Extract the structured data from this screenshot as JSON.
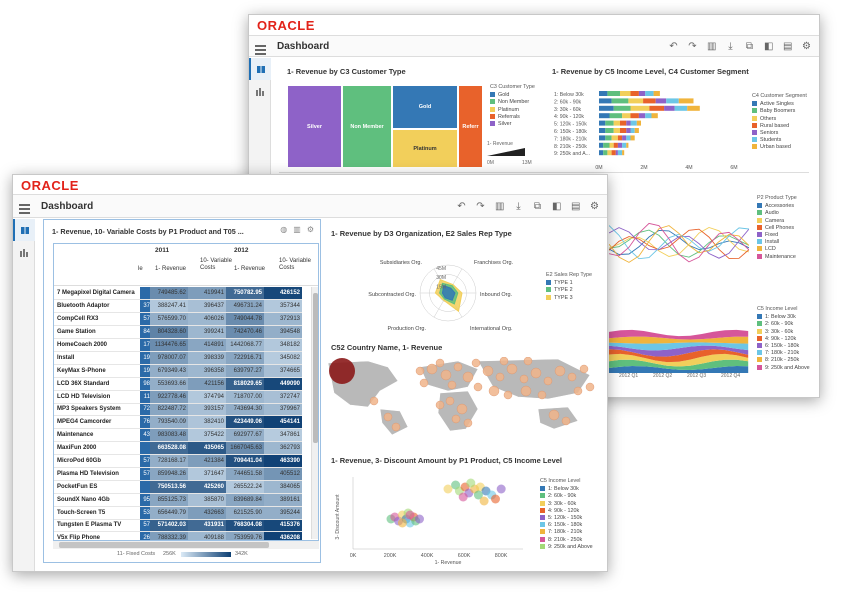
{
  "back": {
    "logo": "ORACLE",
    "title": "Dashboard",
    "p1": {
      "title": "1- Revenue by C3 Customer Type",
      "legend_title": "C3 Customer Type",
      "legend": [
        {
          "label": "Gold",
          "color": "#3478b5"
        },
        {
          "label": "Non Member",
          "color": "#5fbf7e"
        },
        {
          "label": "Platinum",
          "color": "#f2cf5b"
        },
        {
          "label": "Referrals",
          "color": "#e8622b"
        },
        {
          "label": "Silver",
          "color": "#8e62c8"
        }
      ],
      "tiles": [
        {
          "label": "Silver",
          "color": "#8e62c8"
        },
        {
          "label": "Non Member",
          "color": "#5fbf7e"
        },
        {
          "label": "Gold",
          "color": "#3478b5"
        },
        {
          "label": "Platinum",
          "color": "#f2cf5b"
        },
        {
          "label": "Referr",
          "color": "#e8622b"
        }
      ],
      "size_label": "1- Revenue",
      "size_min": "0M",
      "size_max": "13M"
    },
    "p2": {
      "title": "1- Revenue by C5 Income Level, C4 Customer Segment",
      "ylabel": "C5 Income Level",
      "categories": [
        "1: Below 30k",
        "2: 60k - 90k",
        "3: 30k - 60k",
        "4: 90k - 120k",
        "5: 120k - 150k",
        "6: 150k - 180k",
        "7: 180k - 210k",
        "8: 210k - 250k",
        "9: 250k and A..."
      ],
      "xticks": [
        "0M",
        "2M",
        "4M",
        "6M"
      ],
      "xlabel": "1- Revenue",
      "legend_title": "C4 Customer Segment",
      "legend": [
        {
          "label": "Active Singles",
          "color": "#3478b5"
        },
        {
          "label": "Baby Boomers",
          "color": "#5fbf7e"
        },
        {
          "label": "Others",
          "color": "#f2cf5b"
        },
        {
          "label": "Rural based",
          "color": "#e8622b"
        },
        {
          "label": "Seniors",
          "color": "#8e62c8"
        },
        {
          "label": "Students",
          "color": "#6cc6e6"
        },
        {
          "label": "Urban based",
          "color": "#f0b43c"
        }
      ]
    },
    "p3": {
      "legend_title": "P2 Product Type",
      "legend": [
        {
          "label": "Accessories",
          "color": "#3478b5"
        },
        {
          "label": "Audio",
          "color": "#5fbf7e"
        },
        {
          "label": "Camera",
          "color": "#f2cf5b"
        },
        {
          "label": "Cell Phones",
          "color": "#e8622b"
        },
        {
          "label": "Fixed",
          "color": "#8e62c8"
        },
        {
          "label": "Install",
          "color": "#6cc6e6"
        },
        {
          "label": "LCD",
          "color": "#f0b43c"
        },
        {
          "label": "Maintenance",
          "color": "#d6569a"
        }
      ]
    },
    "p4": {
      "legend_title": "C5 Income Level",
      "legend": [
        {
          "label": "1: Below 30k",
          "color": "#3478b5"
        },
        {
          "label": "2: 60k - 90k",
          "color": "#5fbf7e"
        },
        {
          "label": "3: 30k - 60k",
          "color": "#f2cf5b"
        },
        {
          "label": "4: 90k - 120k",
          "color": "#e8622b"
        },
        {
          "label": "6: 150k - 180k",
          "color": "#8e62c8"
        },
        {
          "label": "7: 180k - 210k",
          "color": "#6cc6e6"
        },
        {
          "label": "8: 210k - 250k",
          "color": "#f0b43c"
        },
        {
          "label": "9: 250k and Above",
          "color": "#d6569a"
        }
      ],
      "xticks": [
        "2012 Q1",
        "2012 Q2",
        "2012 Q3",
        "2012 Q4"
      ]
    }
  },
  "front": {
    "logo": "ORACLE",
    "title": "Dashboard",
    "table": {
      "title": "1- Revenue, 10- Variable Costs by P1 Product and T05 ...",
      "years": [
        "2011",
        "2012"
      ],
      "headers": [
        "1- Revenue",
        "10- Variable Costs",
        "1- Revenue",
        "10- Variable Costs"
      ],
      "cut_header": "le",
      "rows": [
        {
          "name": "7 Megapixel Digital Camera",
          "cut": "",
          "v": [
            "749485.62",
            "419941",
            "750782.95",
            "426152"
          ],
          "s": [
            0.55,
            0.45,
            0.75,
            0.95
          ]
        },
        {
          "name": "Bluetooth Adaptor",
          "cut": "37",
          "v": [
            "388247.41",
            "396437",
            "496731.24",
            "357344"
          ],
          "s": [
            0.2,
            0.25,
            0.4,
            0.2
          ]
        },
        {
          "name": "CompCell RX3",
          "cut": "57",
          "v": [
            "576599.70",
            "406026",
            "749044.78",
            "372913"
          ],
          "s": [
            0.35,
            0.3,
            0.55,
            0.3
          ]
        },
        {
          "name": "Game Station",
          "cut": "84",
          "v": [
            "804328.60",
            "399241",
            "742470.46",
            "394548"
          ],
          "s": [
            0.6,
            0.3,
            0.55,
            0.35
          ]
        },
        {
          "name": "HomeCoach 2000",
          "cut": "17",
          "v": [
            "1134476.65",
            "414891",
            "1442068.77",
            "348182"
          ],
          "s": [
            0.55,
            0.4,
            0.3,
            0.2
          ]
        },
        {
          "name": "Install",
          "cut": "19",
          "v": [
            "978007.07",
            "398339",
            "722916.71",
            "345082"
          ],
          "s": [
            0.45,
            0.3,
            0.4,
            0.18
          ]
        },
        {
          "name": "KeyMax S-Phone",
          "cut": "19",
          "v": [
            "679349.43",
            "396358",
            "639797.27",
            "374665"
          ],
          "s": [
            0.35,
            0.3,
            0.4,
            0.25
          ]
        },
        {
          "name": "LCD 36X Standard",
          "cut": "98",
          "v": [
            "553693.66",
            "421156",
            "818029.65",
            "449090"
          ],
          "s": [
            0.35,
            0.45,
            0.8,
            0.95
          ]
        },
        {
          "name": "LCD HD Television",
          "cut": "11",
          "v": [
            "922778.46",
            "374794",
            "718707.00",
            "372747"
          ],
          "s": [
            0.45,
            0.2,
            0.3,
            0.25
          ]
        },
        {
          "name": "MP3 Speakers System",
          "cut": "72",
          "v": [
            "822487.72",
            "393157",
            "743694.30",
            "379967"
          ],
          "s": [
            0.4,
            0.25,
            0.35,
            0.28
          ]
        },
        {
          "name": "MPEG4 Camcorder",
          "cut": "76",
          "v": [
            "793540.09",
            "382410",
            "423449.06",
            "454141"
          ],
          "s": [
            0.35,
            0.22,
            0.9,
            0.98
          ]
        },
        {
          "name": "Maintenance",
          "cut": "43",
          "v": [
            "983083.48",
            "375422",
            "692977.67",
            "347861"
          ],
          "s": [
            0.45,
            0.2,
            0.35,
            0.18
          ]
        },
        {
          "name": "MaxiFun 2000",
          "cut": "",
          "v": [
            "663528.08",
            "435065",
            "1667045.63",
            "362793"
          ],
          "s": [
            0.75,
            0.85,
            0.55,
            0.3
          ]
        },
        {
          "name": "MicroPod 60Gb",
          "cut": "57",
          "v": [
            "728168.17",
            "421384",
            "709441.04",
            "463390"
          ],
          "s": [
            0.35,
            0.45,
            0.9,
            0.98
          ]
        },
        {
          "name": "Plasma HD Television",
          "cut": "57",
          "v": [
            "859948.26",
            "371647",
            "744651.58",
            "405512"
          ],
          "s": [
            0.4,
            0.2,
            0.4,
            0.5
          ]
        },
        {
          "name": "PocketFun ES",
          "cut": "",
          "v": [
            "750513.56",
            "425260",
            "265522.24",
            "384065"
          ],
          "s": [
            0.75,
            0.75,
            0.2,
            0.3
          ]
        },
        {
          "name": "SoundX Nano 4Gb",
          "cut": "95",
          "v": [
            "855125.73",
            "385870",
            "839689.84",
            "389161"
          ],
          "s": [
            0.4,
            0.25,
            0.4,
            0.35
          ]
        },
        {
          "name": "Touch-Screen T5",
          "cut": "53",
          "v": [
            "656449.79",
            "432663",
            "621525.90",
            "395244"
          ],
          "s": [
            0.35,
            0.45,
            0.35,
            0.35
          ]
        },
        {
          "name": "Tungsten E Plasma TV",
          "cut": "57",
          "v": [
            "571402.03",
            "431931",
            "768304.08",
            "415376"
          ],
          "s": [
            0.8,
            0.75,
            0.9,
            0.95
          ]
        },
        {
          "name": "V5x Flip Phone",
          "cut": "26",
          "v": [
            "788332.39",
            "409188",
            "753959.76",
            "436208"
          ],
          "s": [
            0.45,
            0.3,
            0.4,
            0.98
          ]
        }
      ],
      "footer_label": "11- Fixed Costs",
      "footer_min": "256K",
      "footer_max": "342K"
    },
    "radar": {
      "title": "1- Revenue by D3 Organization, E2 Sales Rep Type",
      "axes": [
        "Subsidiaries Org.",
        "Franchises Org.",
        "Inbound Org.",
        "International Org.",
        "Production Org.",
        "Subcontracted Org."
      ],
      "rings": [
        "45M",
        "30M",
        "15M"
      ],
      "legend_title": "E2 Sales Rep Type",
      "legend": [
        {
          "label": "TYPE 1",
          "color": "#3478b5"
        },
        {
          "label": "TYPE 2",
          "color": "#5fbf7e"
        },
        {
          "label": "TYPE 3",
          "color": "#f2cf5b"
        }
      ]
    },
    "map": {
      "title": "C52 Country Name, 1- Revenue"
    },
    "scatter": {
      "title": "1- Revenue, 3- Discount Amount by P1 Product, C5 Income Level",
      "ylabel": "3- Discount Amount",
      "xticks": [
        "0K",
        "200K",
        "400K",
        "600K",
        "800K"
      ],
      "xlabel": "1- Revenue",
      "legend_title": "C5 Income Level",
      "legend": [
        {
          "label": "1: Below 30k",
          "color": "#3478b5"
        },
        {
          "label": "2: 60k - 90k",
          "color": "#5fbf7e"
        },
        {
          "label": "3: 30k - 60k",
          "color": "#f2cf5b"
        },
        {
          "label": "4: 90k - 120k",
          "color": "#e8622b"
        },
        {
          "label": "5: 120k - 150k",
          "color": "#8e62c8"
        },
        {
          "label": "6: 150k - 180k",
          "color": "#6cc6e6"
        },
        {
          "label": "7: 180k - 210k",
          "color": "#f0b43c"
        },
        {
          "label": "8: 210k - 250k",
          "color": "#d6569a"
        },
        {
          "label": "9: 250k and Above",
          "color": "#a3d977"
        }
      ]
    }
  }
}
